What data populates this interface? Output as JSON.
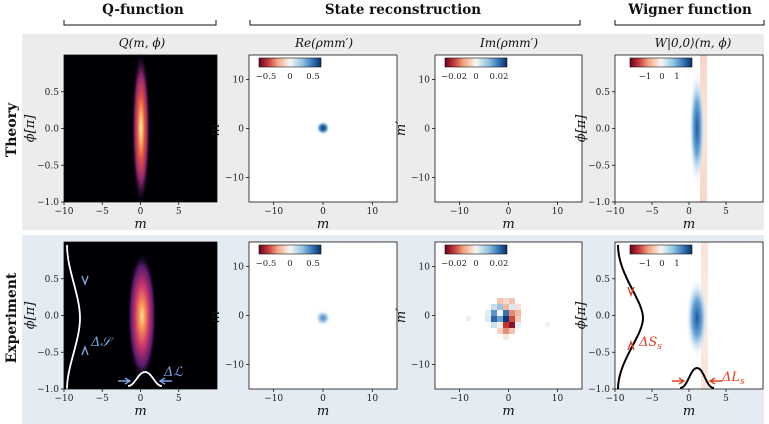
{
  "column_headers": [
    "Q-function",
    "State reconstruction",
    "Wigner function"
  ],
  "row_labels": [
    "Theory",
    "Experiment"
  ],
  "panel_titles": [
    "Q(m, ϕ)",
    "Re(ρmm′)",
    "Im(ρmm′)",
    "W|0,0⟩(m, ϕ)"
  ],
  "axis_labels": {
    "m": "m",
    "phi": "ϕ[π]",
    "mprime": "m′"
  },
  "x_ticks": [
    "−10",
    "−5",
    "0",
    "5"
  ],
  "x_ticks_mid": [
    "−10",
    "0",
    "10"
  ],
  "y_ticks_phi": [
    "0.5",
    "0.0",
    "−0.5",
    "−1.0"
  ],
  "y_ticks_m": [
    "10",
    "0",
    "−10"
  ],
  "colorbars": {
    "re": [
      "−0.5",
      "0",
      "0.5"
    ],
    "im": [
      "−0.02",
      "0",
      "0.02"
    ],
    "wigner": [
      "−1",
      "0",
      "1"
    ]
  },
  "annotations": {
    "delta_S": "Δ𝒮",
    "delta_L": "Δℒ",
    "delta_S_s": "ΔS",
    "delta_L_s": "ΔL",
    "subscript_s": "s"
  },
  "colors": {
    "theory_bg": "#ececec",
    "experiment_bg": "#e4ebf2",
    "blue_annot": "#7aa6e0",
    "red_annot": "#e0401f"
  },
  "chart_data": [
    {
      "type": "heatmap",
      "title": "Q(m, ϕ)",
      "row": "Theory",
      "xlabel": "m",
      "ylabel": "ϕ[π]",
      "xlim": [
        -10,
        10
      ],
      "ylim": [
        -1.0,
        1.0
      ]
    },
    {
      "type": "heatmap",
      "title": "Re(ρmm′)",
      "row": "Theory",
      "xlabel": "m",
      "ylabel": "m′",
      "xlim": [
        -15,
        15
      ],
      "ylim": [
        -15,
        15
      ],
      "colorbar_range": [
        -0.5,
        0.5
      ]
    },
    {
      "type": "heatmap",
      "title": "Im(ρmm′)",
      "row": "Theory",
      "xlabel": "m",
      "ylabel": "m′",
      "xlim": [
        -15,
        15
      ],
      "ylim": [
        -15,
        15
      ],
      "colorbar_range": [
        -0.02,
        0.02
      ]
    },
    {
      "type": "heatmap",
      "title": "W|0,0⟩(m, ϕ)",
      "row": "Theory",
      "xlabel": "m",
      "ylabel": "ϕ[π]",
      "xlim": [
        -10,
        10
      ],
      "ylim": [
        -1.0,
        1.0
      ],
      "colorbar_range": [
        -1,
        1
      ]
    },
    {
      "type": "heatmap",
      "title": "Q(m, ϕ)",
      "row": "Experiment",
      "xlabel": "m",
      "ylabel": "ϕ[π]",
      "xlim": [
        -10,
        10
      ],
      "ylim": [
        -1.0,
        1.0
      ]
    },
    {
      "type": "heatmap",
      "title": "Re(ρmm′)",
      "row": "Experiment",
      "xlabel": "m",
      "ylabel": "m′",
      "xlim": [
        -15,
        15
      ],
      "ylim": [
        -15,
        15
      ],
      "colorbar_range": [
        -0.5,
        0.5
      ]
    },
    {
      "type": "heatmap",
      "title": "Im(ρmm′)",
      "row": "Experiment",
      "xlabel": "m",
      "ylabel": "m′",
      "xlim": [
        -15,
        15
      ],
      "ylim": [
        -15,
        15
      ],
      "colorbar_range": [
        -0.02,
        0.02
      ]
    },
    {
      "type": "heatmap",
      "title": "W|0,0⟩(m, ϕ)",
      "row": "Experiment",
      "xlabel": "m",
      "ylabel": "ϕ[π]",
      "xlim": [
        -10,
        10
      ],
      "ylim": [
        -1.0,
        1.0
      ],
      "colorbar_range": [
        -1,
        1
      ]
    }
  ]
}
